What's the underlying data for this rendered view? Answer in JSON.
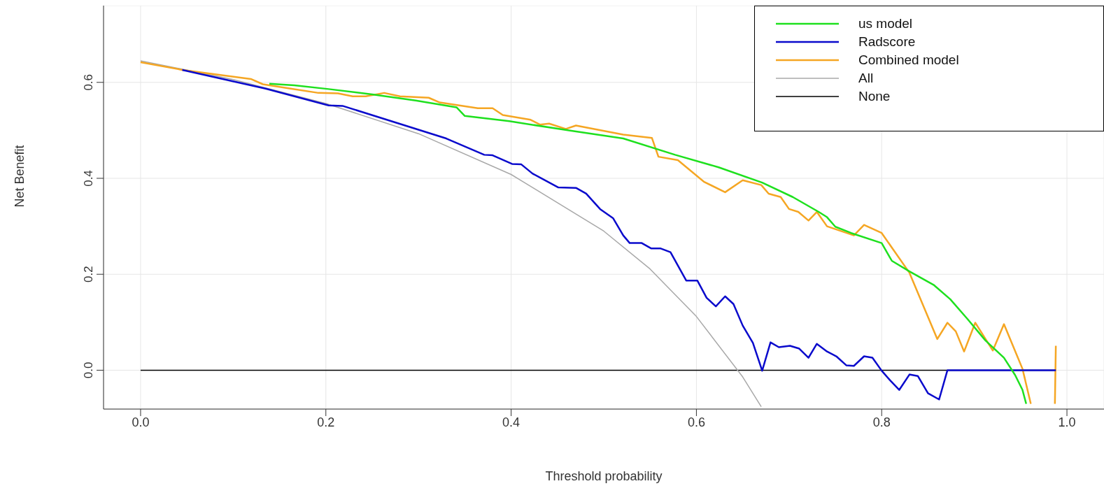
{
  "chart_data": {
    "type": "line",
    "xlabel": "Threshold probability",
    "ylabel": "Net Benefit",
    "xlim": [
      -0.04,
      1.04
    ],
    "ylim": [
      -0.081,
      0.76
    ],
    "xticks": [
      {
        "value": 0,
        "label": "0.0"
      },
      {
        "value": 0.2,
        "label": "0.2"
      },
      {
        "value": 0.4,
        "label": "0.4"
      },
      {
        "value": 0.6,
        "label": "0.6"
      },
      {
        "value": 0.8,
        "label": "0.8"
      },
      {
        "value": 1,
        "label": "1.0"
      }
    ],
    "yticks": [
      {
        "value": 0,
        "label": "0.0"
      },
      {
        "value": 0.2,
        "label": "0.2"
      },
      {
        "value": 0.4,
        "label": "0.4"
      },
      {
        "value": 0.6,
        "label": "0.6"
      }
    ],
    "grid": true,
    "legend": "top right",
    "marker": "none",
    "line_style": "solid",
    "series": [
      {
        "name": "us model",
        "color": "#1ee01e",
        "x": [
          0.139,
          0.166,
          0.203,
          0.25,
          0.297,
          0.341,
          0.35,
          0.398,
          0.465,
          0.521,
          0.577,
          0.624,
          0.671,
          0.704,
          0.732,
          0.741,
          0.75,
          0.767,
          0.8,
          0.811,
          0.83,
          0.856,
          0.874,
          0.893,
          0.912,
          0.932,
          0.944,
          0.952,
          0.956
        ],
        "values": [
          0.597,
          0.594,
          0.586,
          0.575,
          0.562,
          0.548,
          0.53,
          0.519,
          0.499,
          0.483,
          0.449,
          0.423,
          0.391,
          0.361,
          0.33,
          0.319,
          0.299,
          0.286,
          0.265,
          0.228,
          0.206,
          0.178,
          0.148,
          0.106,
          0.062,
          0.026,
          -0.01,
          -0.041,
          -0.07
        ]
      },
      {
        "name": "Radscore",
        "color": "#0a0acc",
        "x": [
          0.045,
          0.135,
          0.203,
          0.218,
          0.33,
          0.371,
          0.38,
          0.401,
          0.411,
          0.423,
          0.451,
          0.47,
          0.481,
          0.496,
          0.51,
          0.521,
          0.528,
          0.541,
          0.551,
          0.561,
          0.572,
          0.589,
          0.601,
          0.611,
          0.621,
          0.631,
          0.64,
          0.65,
          0.661,
          0.671,
          0.68,
          0.689,
          0.701,
          0.711,
          0.721,
          0.73,
          0.741,
          0.751,
          0.762,
          0.77,
          0.781,
          0.79,
          0.8,
          0.81,
          0.819,
          0.83,
          0.839,
          0.85,
          0.862,
          0.871,
          0.988
        ],
        "values": [
          0.626,
          0.587,
          0.552,
          0.551,
          0.483,
          0.449,
          0.448,
          0.43,
          0.429,
          0.41,
          0.381,
          0.38,
          0.368,
          0.336,
          0.317,
          0.281,
          0.265,
          0.265,
          0.254,
          0.254,
          0.246,
          0.187,
          0.187,
          0.151,
          0.133,
          0.154,
          0.138,
          0.093,
          0.057,
          -0.001,
          0.058,
          0.048,
          0.051,
          0.045,
          0.026,
          0.055,
          0.039,
          0.029,
          0.01,
          0.009,
          0.029,
          0.026,
          -0.001,
          -0.023,
          -0.041,
          -0.009,
          -0.012,
          -0.048,
          -0.061,
          0,
          0
        ]
      },
      {
        "name": "Combined model",
        "color": "#f5a623",
        "x": [
          0,
          0.045,
          0.119,
          0.132,
          0.162,
          0.192,
          0.213,
          0.229,
          0.243,
          0.263,
          0.28,
          0.311,
          0.323,
          0.364,
          0.38,
          0.391,
          0.421,
          0.431,
          0.441,
          0.459,
          0.47,
          0.521,
          0.552,
          0.559,
          0.58,
          0.608,
          0.631,
          0.65,
          0.67,
          0.678,
          0.691,
          0.7,
          0.71,
          0.721,
          0.73,
          0.741,
          0.77,
          0.781,
          0.8,
          0.83,
          0.86,
          0.871,
          0.88,
          0.889,
          0.901,
          0.92,
          0.932,
          0.952,
          0.961,
          0.975,
          0.987,
          0.988
        ],
        "values": [
          0.642,
          0.626,
          0.607,
          0.596,
          0.587,
          0.578,
          0.577,
          0.571,
          0.571,
          0.578,
          0.571,
          0.568,
          0.558,
          0.546,
          0.546,
          0.532,
          0.522,
          0.512,
          0.514,
          0.503,
          0.51,
          0.491,
          0.484,
          0.445,
          0.438,
          0.393,
          0.371,
          0.396,
          0.386,
          0.368,
          0.361,
          0.336,
          0.33,
          0.312,
          0.33,
          0.3,
          0.281,
          0.303,
          0.286,
          0.203,
          0.065,
          0.099,
          0.081,
          0.039,
          0.099,
          0.041,
          0.096,
          0.003,
          -0.07,
          null,
          -0.07,
          0.051
        ]
      },
      {
        "name": "All",
        "color": "#a8a8a8",
        "x": [
          0,
          0.1,
          0.2,
          0.3,
          0.4,
          0.5,
          0.55,
          0.6,
          0.65,
          0.67
        ],
        "values": [
          0.645,
          0.606,
          0.556,
          0.493,
          0.408,
          0.29,
          0.211,
          0.112,
          -0.014,
          -0.076
        ]
      },
      {
        "name": "None",
        "color": "#000000",
        "x": [
          0,
          0.988
        ],
        "values": [
          0,
          0
        ]
      }
    ]
  }
}
